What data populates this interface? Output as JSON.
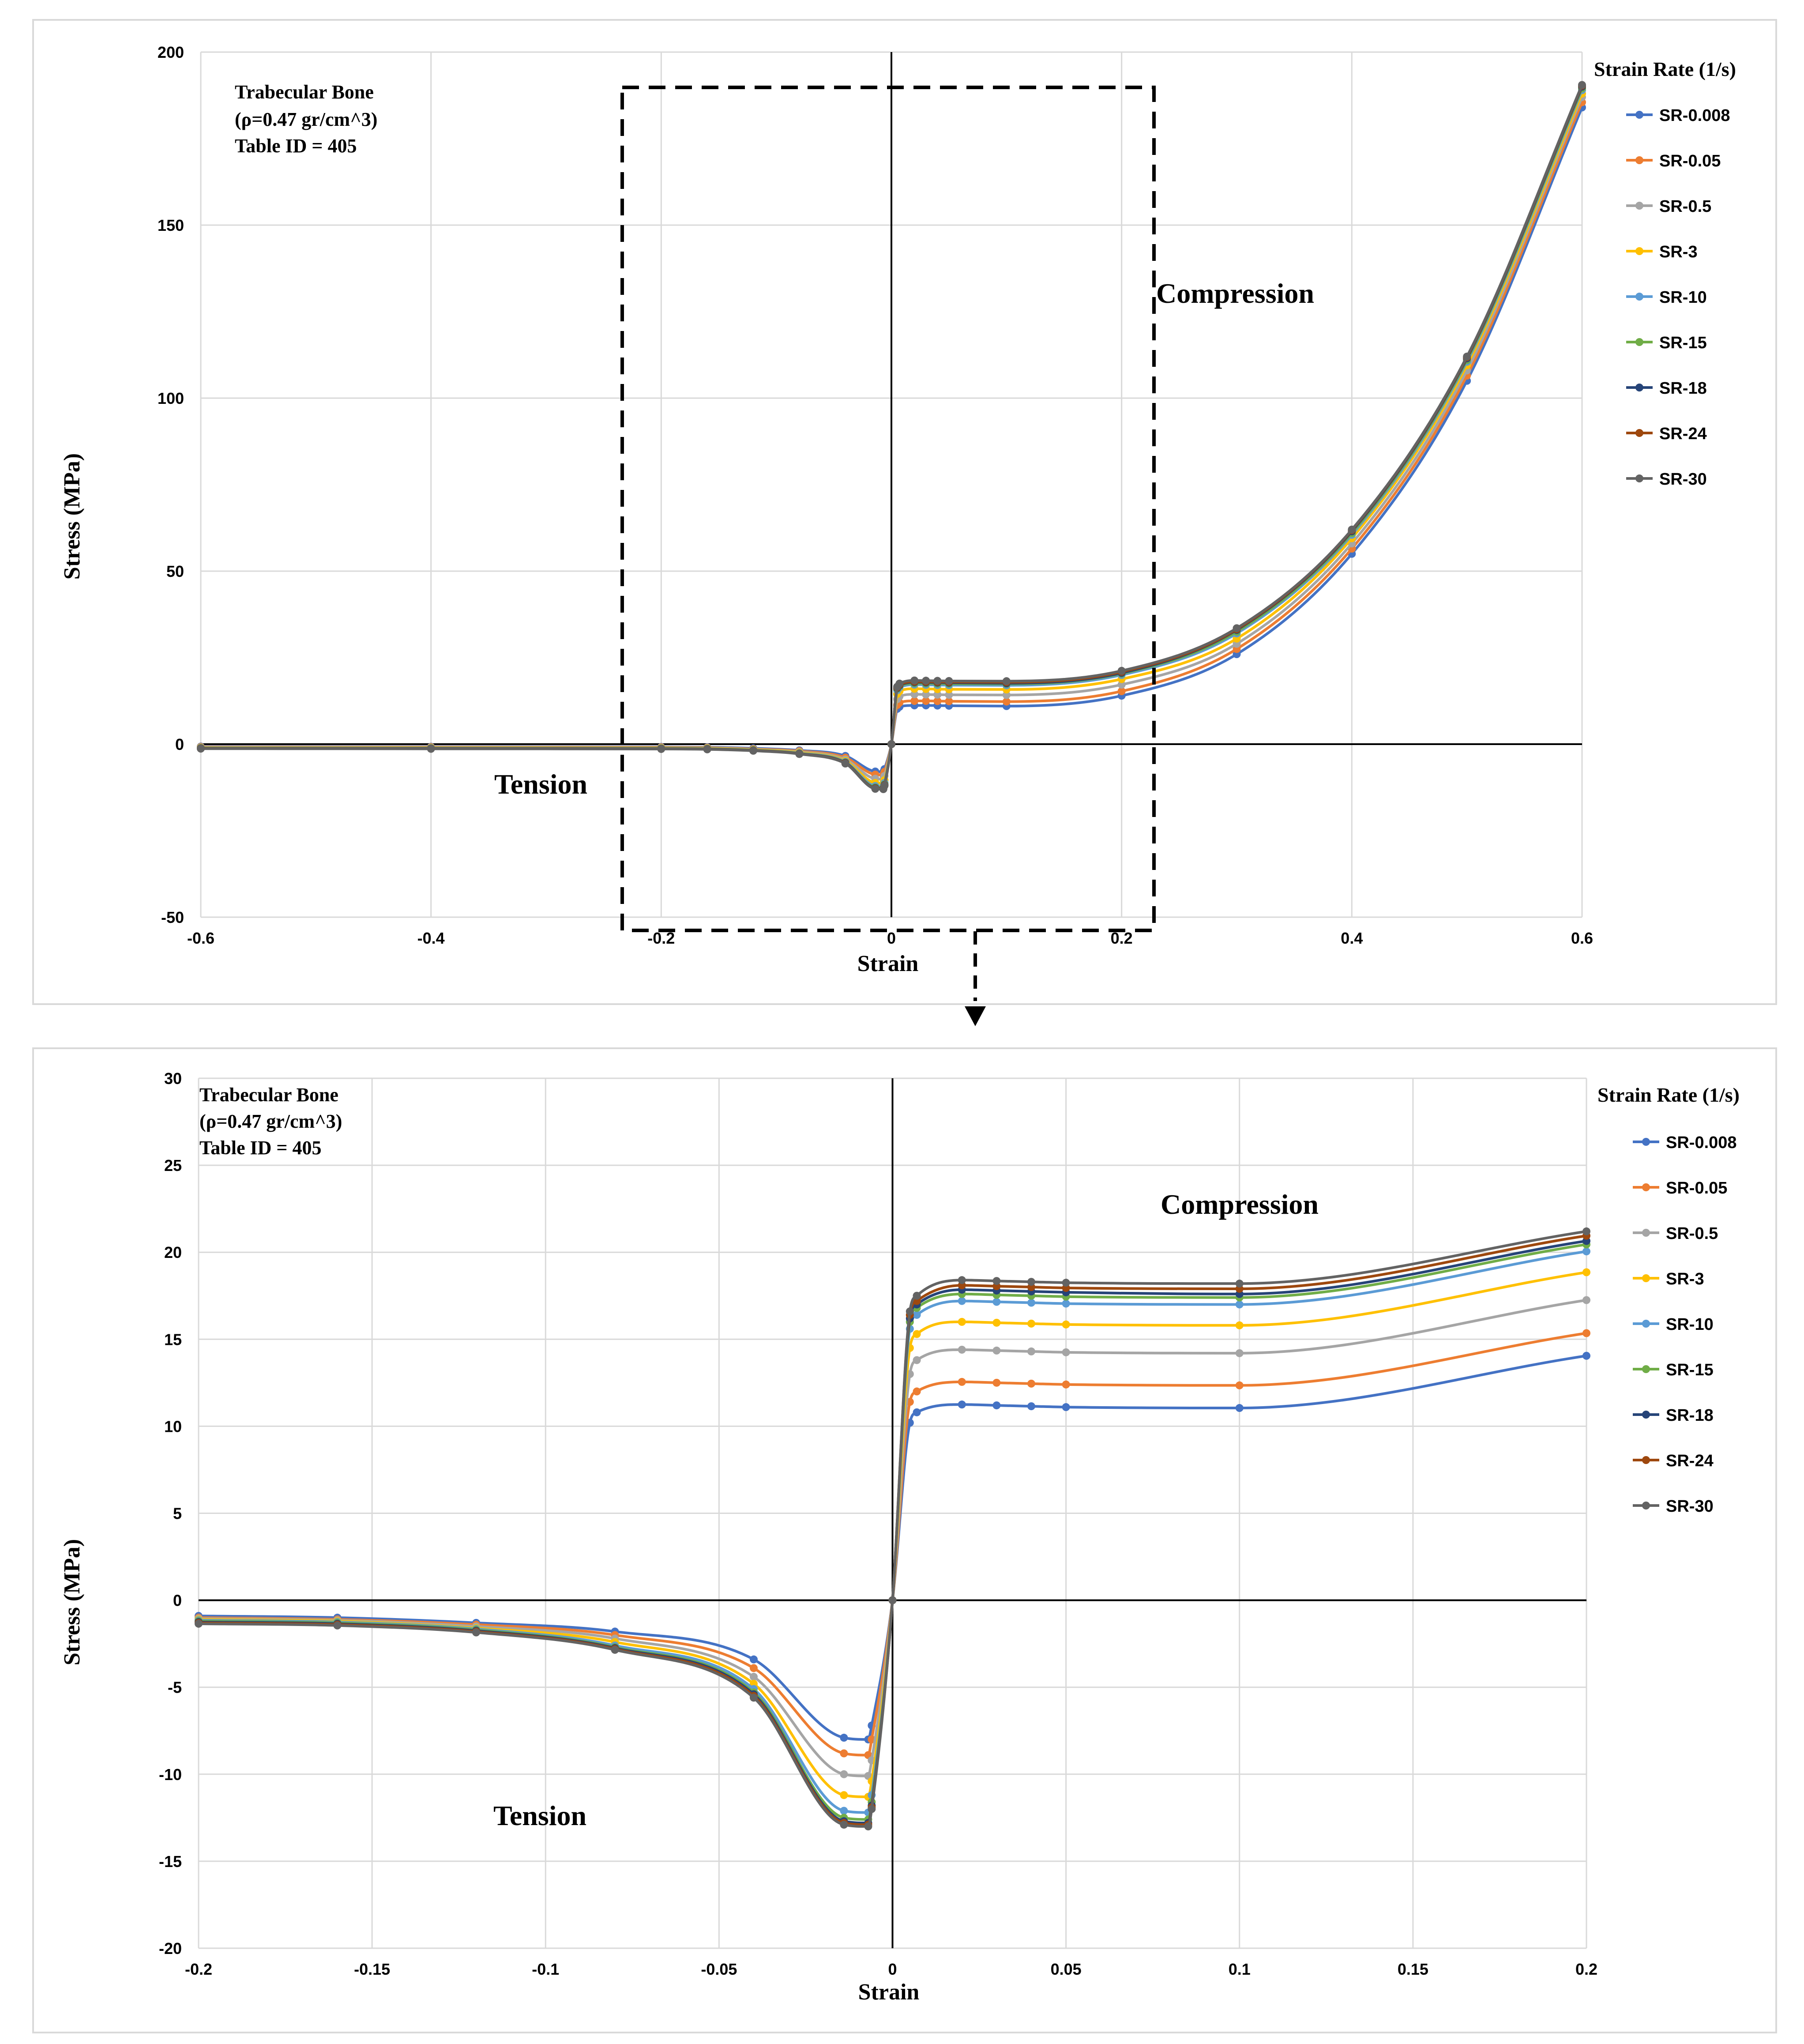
{
  "charts": [
    {
      "id": "top",
      "chart_data": {
        "type": "line",
        "title": "",
        "xlabel": "Strain",
        "ylabel": "Stress (MPa)",
        "xlim": [
          -0.6,
          0.6
        ],
        "ylim": [
          -50,
          200
        ],
        "x_ticks": [
          -0.6,
          -0.4,
          -0.2,
          0,
          0.2,
          0.4,
          0.6
        ],
        "x_tick_labels": [
          "-0.6",
          "-0.4",
          "-0.2",
          "0",
          "0.2",
          "0.4",
          "0.6"
        ],
        "y_ticks": [
          -50,
          0,
          50,
          100,
          150,
          200
        ],
        "y_tick_labels": [
          "-50",
          "0",
          "50",
          "100",
          "150",
          "200"
        ],
        "grid": true,
        "legend_title": "Strain Rate (1/s)",
        "legend_position": "right",
        "annotations": {
          "material_line1": "Trabecular  Bone",
          "material_line2": "(ρ=0.47 gr/cm^3)",
          "material_line3": "Table ID = 405",
          "compression": "Compression",
          "tension": "Tension"
        },
        "x": [
          -0.6,
          -0.4,
          -0.2,
          -0.16,
          -0.12,
          -0.08,
          -0.04,
          -0.014,
          -0.007,
          -0.006,
          0,
          0.005,
          0.007,
          0.02,
          0.03,
          0.04,
          0.05,
          0.1,
          0.2,
          0.3,
          0.4,
          0.5,
          0.6
        ],
        "series": [
          {
            "name": "SR-0.008",
            "color": "#4472C4",
            "values": [
              -0.7,
              -0.75,
              -0.8,
              -0.9,
              -1.2,
              -1.8,
              -3.4,
              -7.9,
              -8.0,
              -7.2,
              0,
              10.2,
              10.8,
              11.2,
              11.2,
              11.15,
              11.1,
              11.0,
              14.0,
              26,
              55,
              105,
              184
            ]
          },
          {
            "name": "SR-0.05",
            "color": "#ED7D31",
            "values": [
              -0.8,
              -0.85,
              -0.9,
              -1.0,
              -1.4,
              -2.0,
              -3.9,
              -8.8,
              -8.9,
              -8.0,
              0,
              11.3,
              12.0,
              12.5,
              12.5,
              12.45,
              12.4,
              12.3,
              15.3,
              27.5,
              56.5,
              106.5,
              185.5
            ]
          },
          {
            "name": "SR-0.5",
            "color": "#A5A5A5",
            "values": [
              -0.9,
              -0.95,
              -1.0,
              -1.1,
              -1.5,
              -2.2,
              -4.4,
              -10.0,
              -10.1,
              -9.2,
              0,
              13.0,
              13.8,
              14.4,
              14.35,
              14.3,
              14.25,
              14.2,
              17.2,
              29,
              58,
              108,
              187
            ]
          },
          {
            "name": "SR-3",
            "color": "#FFC000",
            "values": [
              -1.0,
              -1.05,
              -1.1,
              -1.2,
              -1.6,
              -2.4,
              -4.8,
              -11.2,
              -11.3,
              -10.4,
              0,
              14.5,
              15.3,
              16.0,
              15.95,
              15.9,
              15.85,
              15.8,
              18.8,
              30.5,
              59.5,
              109.5,
              188
            ]
          },
          {
            "name": "SR-10",
            "color": "#5B9BD5",
            "values": [
              -1.1,
              -1.15,
              -1.2,
              -1.3,
              -1.7,
              -2.6,
              -5.1,
              -12.1,
              -12.2,
              -11.2,
              0,
              15.6,
              16.4,
              17.2,
              17.15,
              17.1,
              17.05,
              17.0,
              20.0,
              32,
              60.5,
              110.5,
              189
            ]
          },
          {
            "name": "SR-15",
            "color": "#70AD47",
            "values": [
              -1.15,
              -1.2,
              -1.25,
              -1.35,
              -1.75,
              -2.7,
              -5.3,
              -12.5,
              -12.6,
              -11.6,
              0,
              16.0,
              16.8,
              17.6,
              17.55,
              17.5,
              17.45,
              17.4,
              20.4,
              32.5,
              61,
              111,
              189.5
            ]
          },
          {
            "name": "SR-18",
            "color": "#264478",
            "values": [
              -1.2,
              -1.25,
              -1.3,
              -1.4,
              -1.8,
              -2.75,
              -5.4,
              -12.7,
              -12.8,
              -11.8,
              0,
              16.2,
              17.0,
              17.9,
              17.85,
              17.8,
              17.75,
              17.6,
              20.6,
              33,
              61.5,
              111.5,
              190
            ]
          },
          {
            "name": "SR-24",
            "color": "#9E480E",
            "values": [
              -1.25,
              -1.3,
              -1.35,
              -1.45,
              -1.85,
              -2.8,
              -5.5,
              -12.8,
              -12.9,
              -11.9,
              0,
              16.4,
              17.2,
              18.1,
              18.05,
              18.0,
              17.95,
              17.9,
              20.9,
              33.2,
              61.8,
              111.8,
              190.3
            ]
          },
          {
            "name": "SR-30",
            "color": "#636363",
            "values": [
              -1.3,
              -1.35,
              -1.4,
              -1.5,
              -1.9,
              -2.85,
              -5.6,
              -12.9,
              -13.0,
              -12.0,
              0,
              16.6,
              17.5,
              18.4,
              18.35,
              18.3,
              18.25,
              18.2,
              21.2,
              33.5,
              62,
              112,
              190.5
            ]
          }
        ]
      }
    },
    {
      "id": "bottom",
      "chart_data": {
        "type": "line",
        "title": "",
        "xlabel": "Strain",
        "ylabel": "Stress (MPa)",
        "xlim": [
          -0.2,
          0.2
        ],
        "ylim": [
          -20,
          30
        ],
        "x_ticks": [
          -0.2,
          -0.15,
          -0.1,
          -0.05,
          0,
          0.05,
          0.1,
          0.15,
          0.2
        ],
        "x_tick_labels": [
          "-0.2",
          "-0.15",
          "-0.1",
          "-0.05",
          "0",
          "0.05",
          "0.1",
          "0.15",
          "0.2"
        ],
        "y_ticks": [
          -20,
          -15,
          -10,
          -5,
          0,
          5,
          10,
          15,
          20,
          25,
          30
        ],
        "y_tick_labels": [
          "-20",
          "-15",
          "-10",
          "-5",
          "0",
          "5",
          "10",
          "15",
          "20",
          "25",
          "30"
        ],
        "grid": true,
        "legend_title": "Strain Rate (1/s)",
        "legend_position": "right",
        "annotations": {
          "material_line1": "Trabecular  Bone",
          "material_line2": "(ρ=0.47 gr/cm^3)",
          "material_line3": "Table ID = 405",
          "compression": "Compression",
          "tension": "Tension"
        },
        "x": [
          -0.2,
          -0.16,
          -0.12,
          -0.08,
          -0.04,
          -0.014,
          -0.007,
          -0.006,
          0,
          0.005,
          0.007,
          0.02,
          0.03,
          0.04,
          0.05,
          0.1,
          0.2
        ],
        "series": [
          {
            "name": "SR-0.008",
            "color": "#4472C4",
            "values": [
              -0.9,
              -1.0,
              -1.3,
              -1.8,
              -3.4,
              -7.9,
              -8.0,
              -7.2,
              0,
              10.2,
              10.8,
              11.25,
              11.2,
              11.15,
              11.1,
              11.05,
              14.05
            ]
          },
          {
            "name": "SR-0.05",
            "color": "#ED7D31",
            "values": [
              -1.0,
              -1.1,
              -1.4,
              -2.0,
              -3.9,
              -8.8,
              -8.9,
              -8.0,
              0,
              11.4,
              12.0,
              12.55,
              12.5,
              12.45,
              12.4,
              12.35,
              15.35
            ]
          },
          {
            "name": "SR-0.5",
            "color": "#A5A5A5",
            "values": [
              -1.05,
              -1.15,
              -1.5,
              -2.2,
              -4.4,
              -10.0,
              -10.1,
              -9.2,
              0,
              13.0,
              13.8,
              14.4,
              14.35,
              14.3,
              14.25,
              14.2,
              17.25
            ]
          },
          {
            "name": "SR-3",
            "color": "#FFC000",
            "values": [
              -1.1,
              -1.2,
              -1.6,
              -2.4,
              -4.8,
              -11.2,
              -11.3,
              -10.4,
              0,
              14.5,
              15.3,
              16.0,
              15.95,
              15.9,
              15.85,
              15.8,
              18.85
            ]
          },
          {
            "name": "SR-10",
            "color": "#5B9BD5",
            "values": [
              -1.15,
              -1.25,
              -1.65,
              -2.6,
              -5.1,
              -12.1,
              -12.2,
              -11.2,
              0,
              15.6,
              16.4,
              17.2,
              17.15,
              17.1,
              17.05,
              17.0,
              20.05
            ]
          },
          {
            "name": "SR-15",
            "color": "#70AD47",
            "values": [
              -1.2,
              -1.3,
              -1.7,
              -2.7,
              -5.3,
              -12.5,
              -12.6,
              -11.6,
              0,
              16.0,
              16.8,
              17.6,
              17.55,
              17.5,
              17.45,
              17.4,
              20.45
            ]
          },
          {
            "name": "SR-18",
            "color": "#264478",
            "values": [
              -1.25,
              -1.35,
              -1.75,
              -2.75,
              -5.4,
              -12.7,
              -12.8,
              -11.8,
              0,
              16.2,
              17.0,
              17.85,
              17.8,
              17.75,
              17.7,
              17.6,
              20.65
            ]
          },
          {
            "name": "SR-24",
            "color": "#9E480E",
            "values": [
              -1.3,
              -1.4,
              -1.8,
              -2.8,
              -5.5,
              -12.8,
              -12.9,
              -11.9,
              0,
              16.4,
              17.2,
              18.1,
              18.05,
              18.0,
              17.95,
              17.9,
              20.95
            ]
          },
          {
            "name": "SR-30",
            "color": "#636363",
            "values": [
              -1.35,
              -1.45,
              -1.85,
              -2.85,
              -5.6,
              -12.9,
              -13.0,
              -12.0,
              0,
              16.6,
              17.5,
              18.4,
              18.35,
              18.3,
              18.25,
              18.2,
              21.2
            ]
          }
        ]
      }
    }
  ]
}
